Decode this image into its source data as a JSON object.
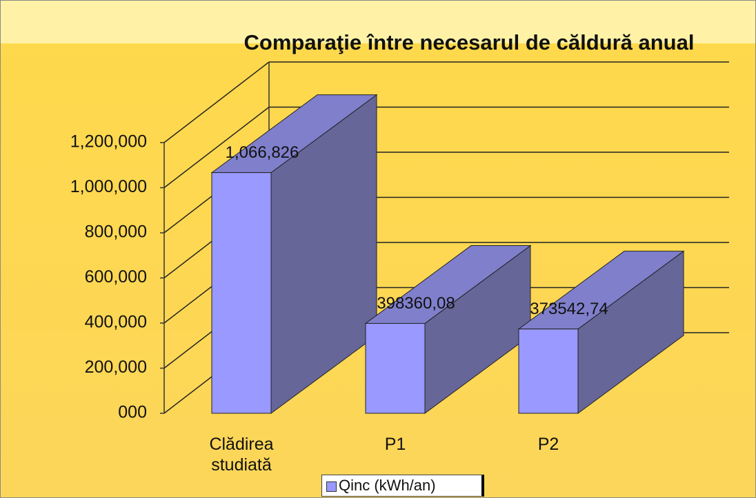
{
  "chart_data": {
    "type": "bar3d",
    "title": "Comparaţie între necesarul de căldură anual",
    "categories": [
      "Clădirea studiată",
      "P1",
      "P2"
    ],
    "series": [
      {
        "name": "Qinc (kWh/an)",
        "color": "#9999ff",
        "values": [
          1066826,
          398360.08,
          373542.74
        ],
        "value_labels": [
          "1,066,826",
          "398360,08",
          "373542,74"
        ]
      }
    ],
    "ylim": [
      0,
      1200000
    ],
    "yticks": [
      {
        "value": 0,
        "label": "000"
      },
      {
        "value": 200000,
        "label": "200,000"
      },
      {
        "value": 400000,
        "label": "400,000"
      },
      {
        "value": 600000,
        "label": "600,000"
      },
      {
        "value": 800000,
        "label": "800,000"
      },
      {
        "value": 1000000,
        "label": "1,000,000"
      },
      {
        "value": 1200000,
        "label": "1,200,000"
      }
    ],
    "grid": true,
    "legend": "bottom"
  }
}
